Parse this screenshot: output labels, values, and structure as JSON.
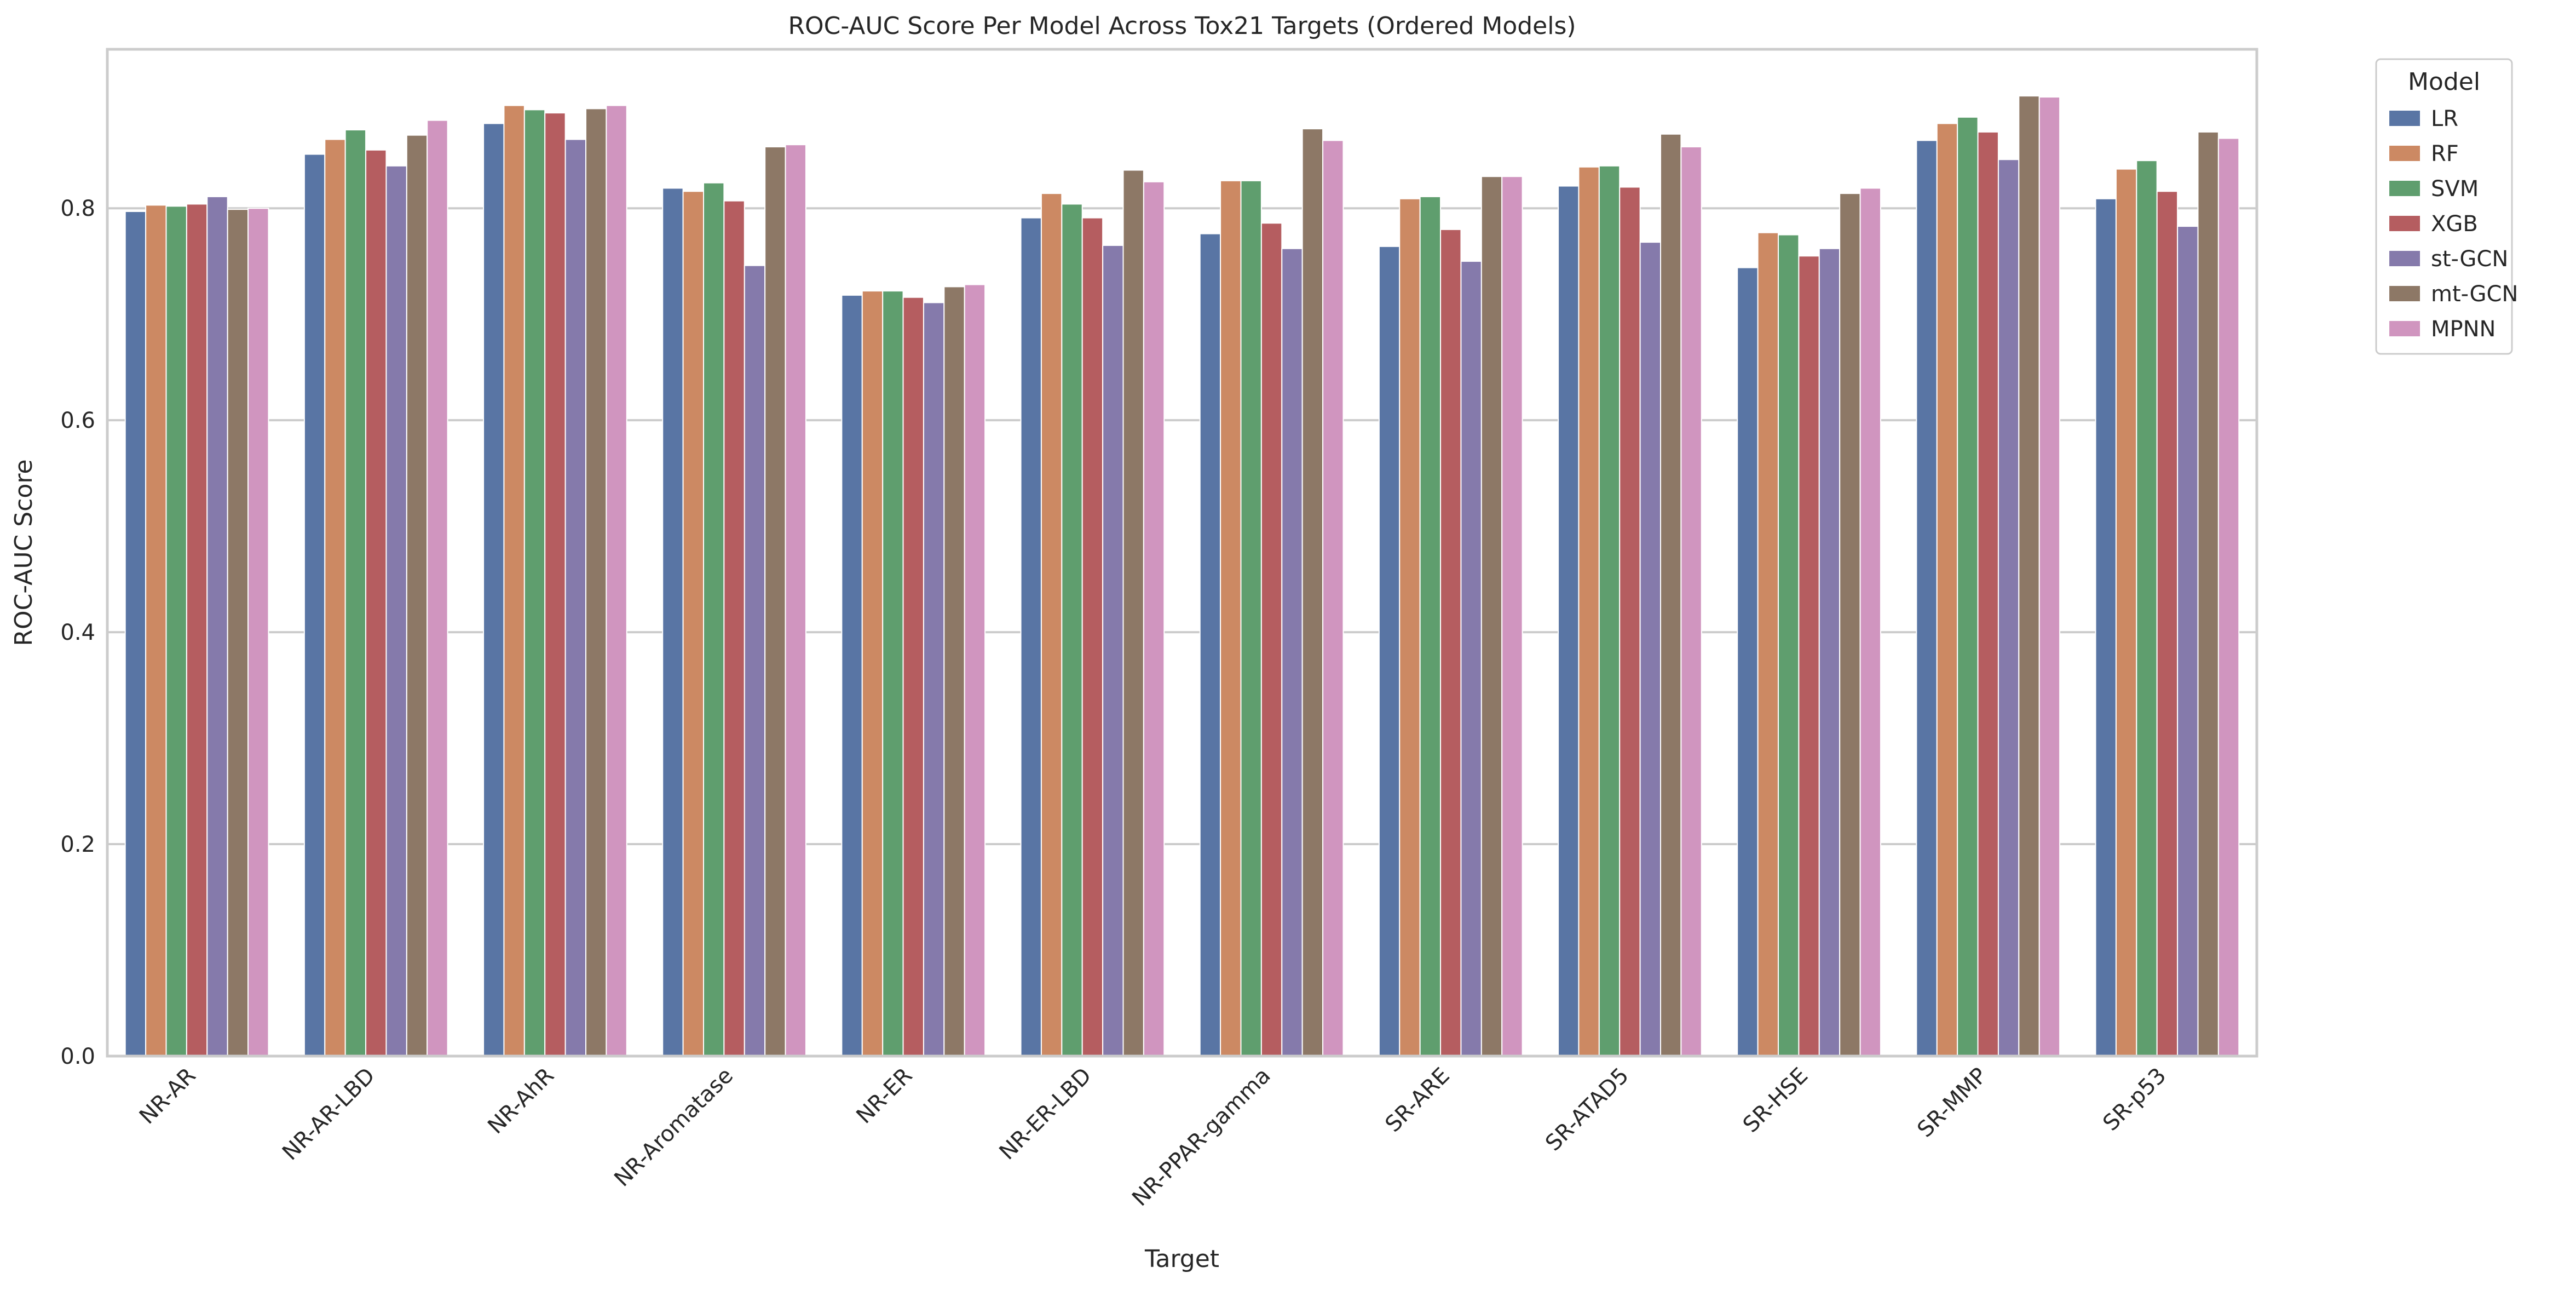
{
  "chart_data": {
    "type": "bar",
    "title": "ROC-AUC Score Per Model Across Tox21 Targets (Ordered Models)",
    "xlabel": "Target",
    "ylabel": "ROC-AUC Score",
    "ylim": [
      0,
      0.95
    ],
    "yticks": [
      "0.0",
      "0.2",
      "0.4",
      "0.6",
      "0.8"
    ],
    "grid": "horizontal",
    "legend": {
      "title": "Model",
      "placement": "outside-top-right"
    },
    "categories": [
      "NR-AR",
      "NR-AR-LBD",
      "NR-AhR",
      "NR-Aromatase",
      "NR-ER",
      "NR-ER-LBD",
      "NR-PPAR-gamma",
      "SR-ARE",
      "SR-ATAD5",
      "SR-HSE",
      "SR-MMP",
      "SR-p53"
    ],
    "series": [
      {
        "name": "LR",
        "color": "#5975a4",
        "values": [
          0.797,
          0.851,
          0.88,
          0.819,
          0.718,
          0.791,
          0.776,
          0.764,
          0.821,
          0.744,
          0.864,
          0.809
        ]
      },
      {
        "name": "RF",
        "color": "#cc8963",
        "values": [
          0.803,
          0.865,
          0.897,
          0.816,
          0.722,
          0.814,
          0.826,
          0.809,
          0.839,
          0.777,
          0.88,
          0.837
        ]
      },
      {
        "name": "SVM",
        "color": "#5f9e6e",
        "values": [
          0.802,
          0.874,
          0.893,
          0.824,
          0.722,
          0.804,
          0.826,
          0.811,
          0.84,
          0.775,
          0.886,
          0.845
        ]
      },
      {
        "name": "XGB",
        "color": "#b55d60",
        "values": [
          0.804,
          0.855,
          0.89,
          0.807,
          0.716,
          0.791,
          0.786,
          0.78,
          0.82,
          0.755,
          0.872,
          0.816
        ]
      },
      {
        "name": "st-GCN",
        "color": "#857aab",
        "values": [
          0.811,
          0.84,
          0.865,
          0.746,
          0.711,
          0.765,
          0.762,
          0.75,
          0.768,
          0.762,
          0.846,
          0.783
        ]
      },
      {
        "name": "mt-GCN",
        "color": "#8d7866",
        "values": [
          0.799,
          0.869,
          0.894,
          0.858,
          0.726,
          0.836,
          0.875,
          0.83,
          0.87,
          0.814,
          0.906,
          0.872
        ]
      },
      {
        "name": "MPNN",
        "color": "#d095bf",
        "values": [
          0.8,
          0.883,
          0.897,
          0.86,
          0.728,
          0.825,
          0.864,
          0.83,
          0.858,
          0.819,
          0.905,
          0.866
        ]
      }
    ]
  }
}
